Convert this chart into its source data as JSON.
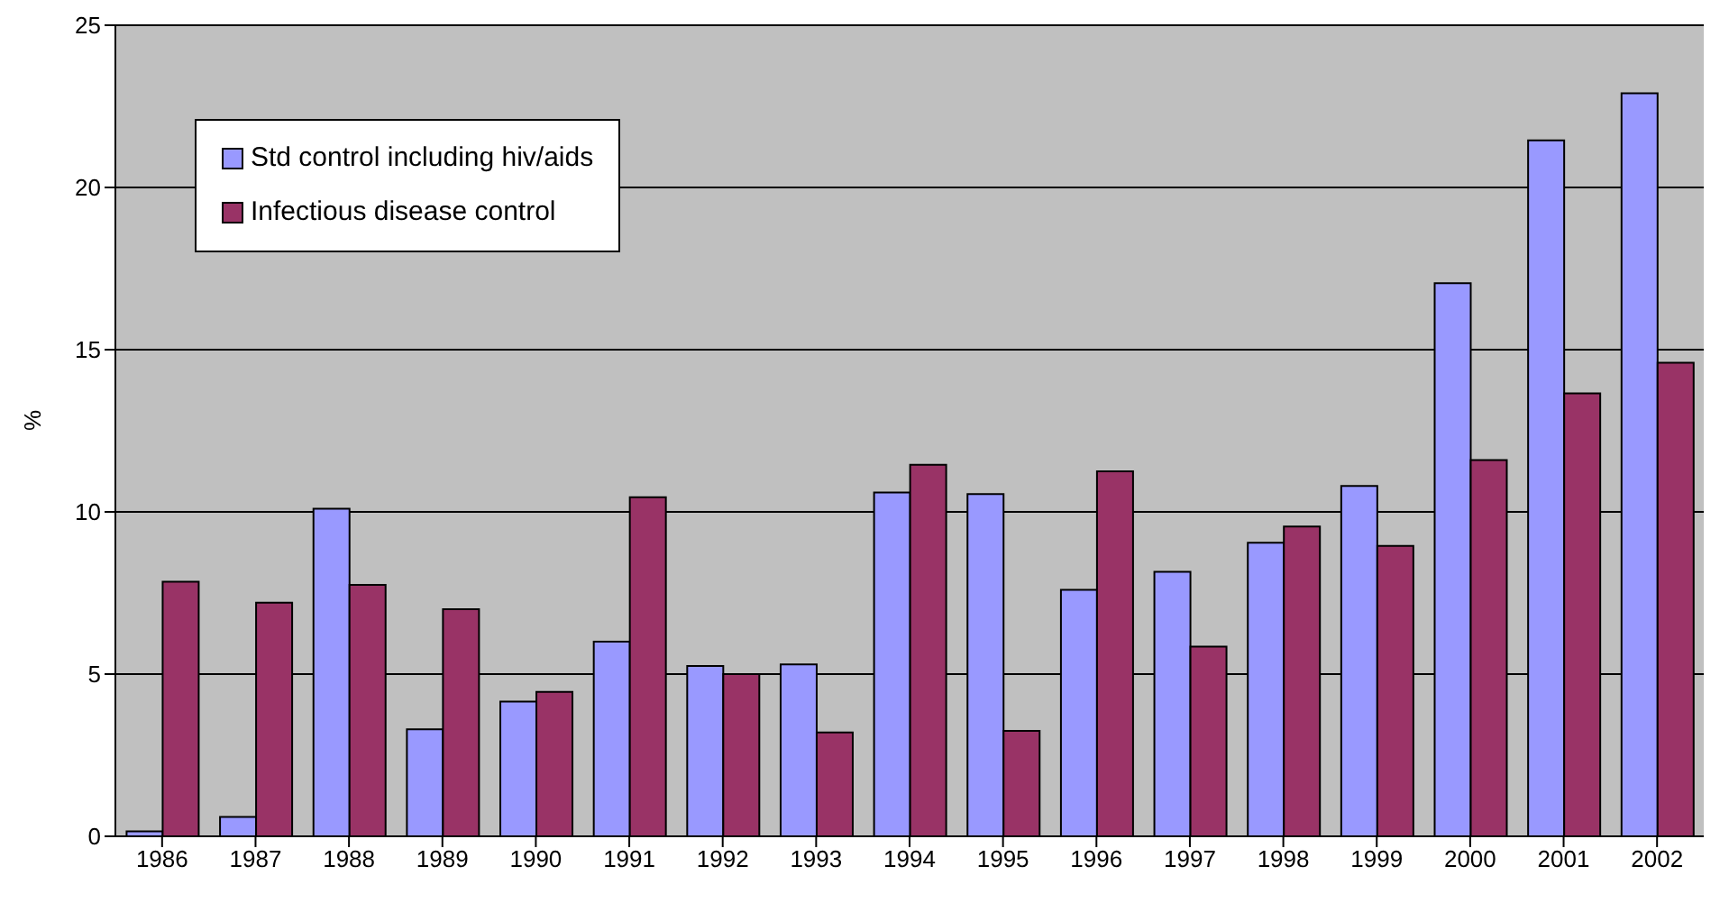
{
  "chart_data": {
    "type": "bar",
    "ylabel": "%",
    "categories": [
      "1986",
      "1987",
      "1988",
      "1989",
      "1990",
      "1991",
      "1992",
      "1993",
      "1994",
      "1995",
      "1996",
      "1997",
      "1998",
      "1999",
      "2000",
      "2001",
      "2002"
    ],
    "series": [
      {
        "name": "Std control including hiv/aids",
        "color": "#9999ff",
        "values": [
          0.15,
          0.6,
          10.1,
          3.3,
          4.15,
          6.0,
          5.25,
          5.3,
          10.6,
          10.55,
          7.6,
          8.15,
          9.05,
          10.8,
          17.05,
          21.45,
          22.9
        ]
      },
      {
        "name": "Infectious disease control",
        "color": "#993366",
        "values": [
          7.85,
          7.2,
          7.75,
          7.0,
          4.45,
          10.45,
          5.0,
          3.2,
          11.45,
          3.25,
          11.25,
          5.85,
          9.55,
          8.95,
          11.6,
          13.65,
          14.6
        ]
      }
    ],
    "ylim": [
      0,
      25
    ],
    "yticks": [
      0,
      5,
      10,
      15,
      20,
      25
    ],
    "grid": "y",
    "legend": "top left"
  }
}
